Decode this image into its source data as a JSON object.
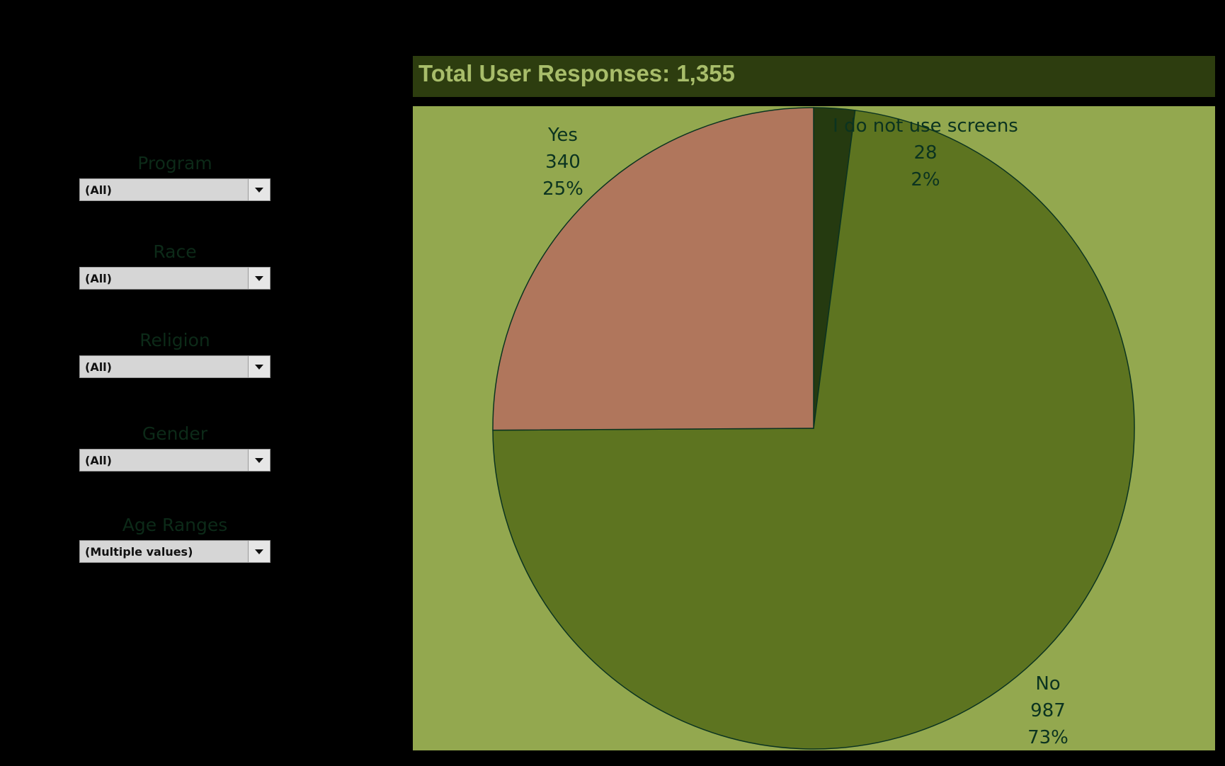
{
  "filters": [
    {
      "label": "Program",
      "value": "(All)"
    },
    {
      "label": "Race",
      "value": "(All)"
    },
    {
      "label": "Religion",
      "value": "(All)"
    },
    {
      "label": "Gender",
      "value": "(All)"
    },
    {
      "label": "Age Ranges",
      "value": "(Multiple values)"
    }
  ],
  "header": {
    "title": "Total User Responses: 1,355"
  },
  "colors": {
    "yes": "#b0765c",
    "no": "#5d7420",
    "no_screens": "#253a10",
    "background": "#93a84f"
  },
  "chart_data": {
    "type": "pie",
    "title": "Total User Responses: 1,355",
    "total": 1355,
    "slices": [
      {
        "label": "I do not use screens",
        "value": 28,
        "value_label": "28",
        "percent_label": "2%"
      },
      {
        "label": "No",
        "value": 987,
        "value_label": "987",
        "percent_label": "73%"
      },
      {
        "label": "Yes",
        "value": 340,
        "value_label": "340",
        "percent_label": "25%"
      }
    ]
  }
}
